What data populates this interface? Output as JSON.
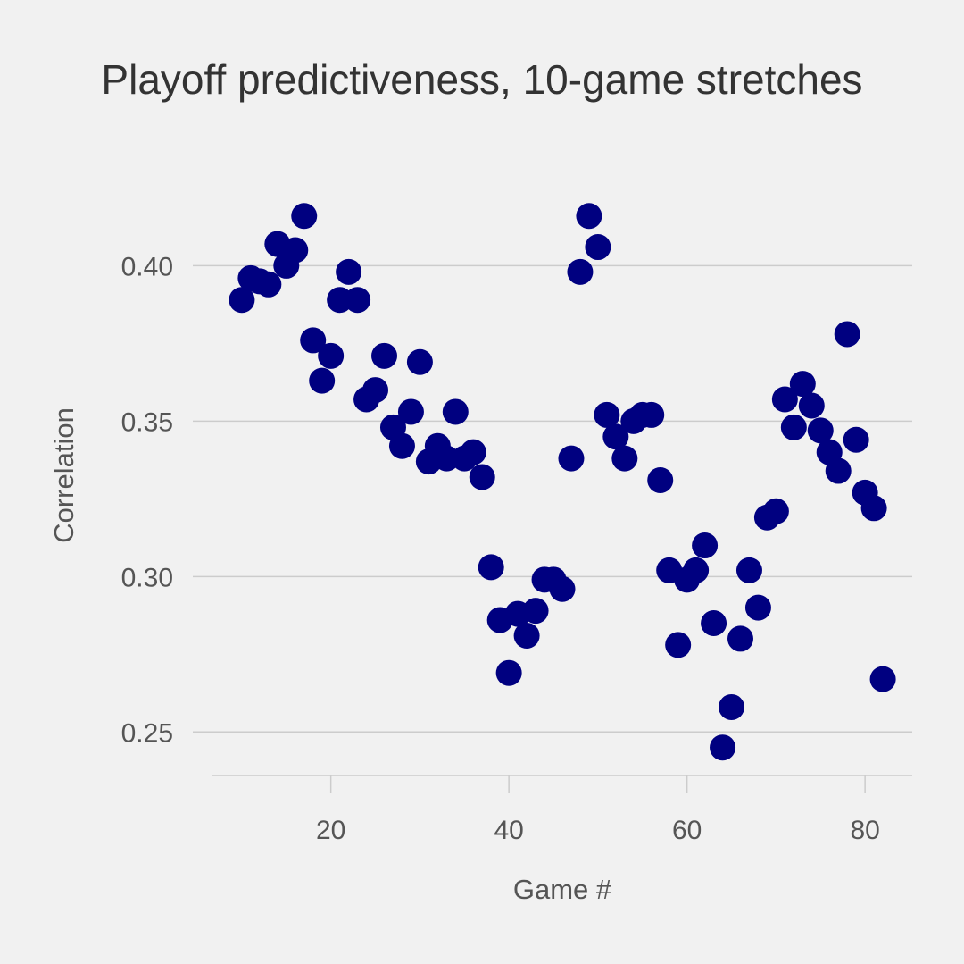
{
  "chart_data": {
    "type": "scatter",
    "title": "Playoff predictiveness, 10-game stretches",
    "xlabel": "Game #",
    "ylabel": "Correlation",
    "xlim": [
      6.7,
      85.3
    ],
    "ylim": [
      0.236,
      0.428
    ],
    "xticks": [
      {
        "value": 20,
        "label": "20"
      },
      {
        "value": 40,
        "label": "40"
      },
      {
        "value": 60,
        "label": "60"
      },
      {
        "value": 80,
        "label": "80"
      }
    ],
    "yticks": [
      {
        "value": 0.25,
        "label": "0.25"
      },
      {
        "value": 0.3,
        "label": "0.30"
      },
      {
        "value": 0.35,
        "label": "0.35"
      },
      {
        "value": 0.4,
        "label": "0.40"
      }
    ],
    "grid": "horizontal",
    "marker_color": "#000080",
    "grid_color": "#cccccc",
    "background_color": "#f1f1f1",
    "series": [
      {
        "x": [
          10,
          11,
          12,
          13,
          14,
          15,
          16,
          17,
          18,
          19,
          20,
          21,
          22,
          23,
          24,
          25,
          26,
          27,
          28,
          29,
          30,
          31,
          32,
          33,
          34,
          35,
          36,
          37,
          38,
          39,
          40,
          41,
          42,
          43,
          44,
          45,
          46,
          47,
          48,
          49,
          50,
          51,
          52,
          53,
          54,
          55,
          56,
          57,
          58,
          59,
          60,
          61,
          62,
          63,
          64,
          65,
          66,
          67,
          68,
          69,
          70,
          71,
          72,
          73,
          74,
          75,
          76,
          77,
          78,
          79,
          80,
          81,
          82
        ],
        "y": [
          0.389,
          0.396,
          0.395,
          0.394,
          0.407,
          0.4,
          0.405,
          0.416,
          0.376,
          0.363,
          0.371,
          0.389,
          0.398,
          0.389,
          0.357,
          0.36,
          0.371,
          0.348,
          0.342,
          0.353,
          0.369,
          0.337,
          0.342,
          0.338,
          0.353,
          0.338,
          0.34,
          0.332,
          0.303,
          0.286,
          0.269,
          0.288,
          0.281,
          0.289,
          0.299,
          0.299,
          0.296,
          0.338,
          0.398,
          0.416,
          0.406,
          0.352,
          0.345,
          0.338,
          0.35,
          0.352,
          0.352,
          0.331,
          0.302,
          0.278,
          0.299,
          0.302,
          0.31,
          0.285,
          0.245,
          0.258,
          0.28,
          0.302,
          0.29,
          0.319,
          0.321,
          0.357,
          0.348,
          0.362,
          0.355,
          0.347,
          0.34,
          0.334,
          0.378,
          0.344,
          0.327,
          0.322,
          0.267
        ]
      }
    ]
  }
}
